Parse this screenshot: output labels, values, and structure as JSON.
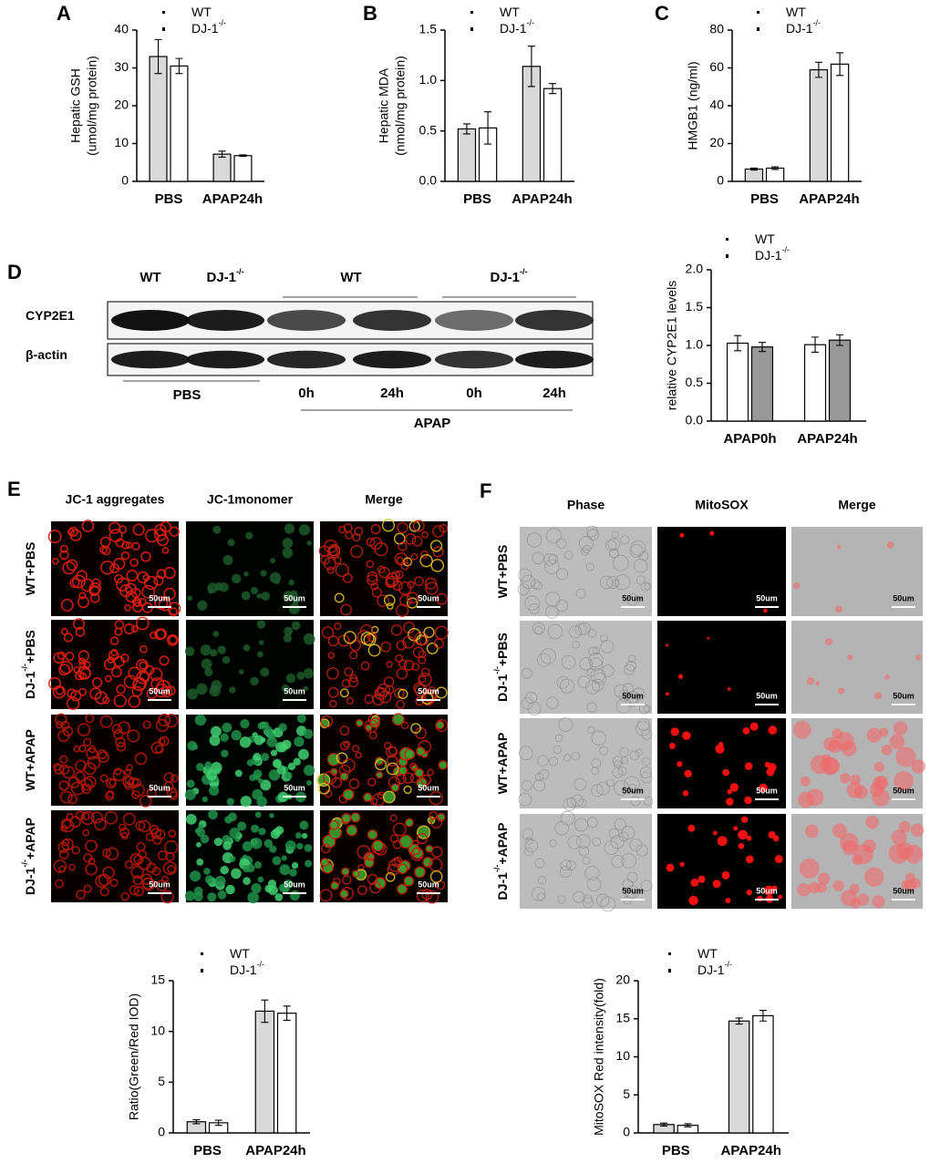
{
  "chart_data": [
    {
      "type": "bar",
      "panel": "A",
      "ylabel": [
        "Hepatic GSH",
        "(umol/mg protein)"
      ],
      "categories": [
        "PBS",
        "APAP24h"
      ],
      "series": [
        {
          "name": "WT",
          "color": "#d9d9d9",
          "values": [
            33,
            7.2
          ],
          "errors": [
            4.5,
            0.8
          ]
        },
        {
          "name": "DJ-1",
          "name_sup": "-/-",
          "color": "#ffffff",
          "values": [
            30.5,
            6.8
          ],
          "errors": [
            2,
            0.2
          ]
        }
      ],
      "ylim": [
        0,
        40
      ],
      "yticks": [
        0,
        10,
        20,
        30,
        40
      ]
    },
    {
      "type": "bar",
      "panel": "B",
      "ylabel": [
        "Hepatic MDA",
        "(nmol/mg protein)"
      ],
      "categories": [
        "PBS",
        "APAP24h"
      ],
      "series": [
        {
          "name": "WT",
          "color": "#d9d9d9",
          "values": [
            0.52,
            1.14
          ],
          "errors": [
            0.05,
            0.2
          ]
        },
        {
          "name": "DJ-1",
          "name_sup": "-/-",
          "color": "#ffffff",
          "values": [
            0.53,
            0.92
          ],
          "errors": [
            0.16,
            0.05
          ]
        }
      ],
      "ylim": [
        0,
        1.5
      ],
      "yticks": [
        {
          "value": 0,
          "label": "0.0"
        },
        0.5,
        {
          "value": 1,
          "label": "1.0"
        },
        1.5
      ]
    },
    {
      "type": "bar",
      "panel": "C",
      "ylabel": [
        "HMGB1 (ng/ml)"
      ],
      "categories": [
        "PBS",
        "APAP24h"
      ],
      "series": [
        {
          "name": "WT",
          "color": "#d9d9d9",
          "values": [
            6.5,
            59
          ],
          "errors": [
            0.5,
            4
          ]
        },
        {
          "name": "DJ-1",
          "name_sup": "-/-",
          "color": "#ffffff",
          "values": [
            7,
            62
          ],
          "errors": [
            0.7,
            6
          ]
        }
      ],
      "ylim": [
        0,
        80
      ],
      "yticks": [
        0,
        20,
        40,
        60,
        80
      ]
    },
    {
      "type": "bar",
      "ylabel": [
        "relative CYP2E1 levels"
      ],
      "categories": [
        "APAP0h",
        "APAP24h"
      ],
      "series": [
        {
          "name": "WT",
          "color": "#ffffff",
          "values": [
            1.03,
            1.01
          ],
          "errors": [
            0.1,
            0.1
          ]
        },
        {
          "name": "DJ-1",
          "name_sup": "-/-",
          "color": "#999999",
          "values": [
            0.98,
            1.07
          ],
          "errors": [
            0.06,
            0.07
          ]
        }
      ],
      "ylim": [
        0,
        2
      ],
      "yticks": [
        {
          "value": 0,
          "label": "0.0"
        },
        0.5,
        {
          "value": 1,
          "label": "1.0"
        },
        1.5,
        {
          "value": 2,
          "label": "2.0"
        }
      ]
    },
    {
      "type": "bar",
      "ylabel": [
        "Ratio(Green/Red IOD)"
      ],
      "categories": [
        "PBS",
        "APAP24h"
      ],
      "series": [
        {
          "name": "WT",
          "color": "#d9d9d9",
          "values": [
            1.1,
            12
          ],
          "errors": [
            0.2,
            1.1
          ]
        },
        {
          "name": "DJ-1",
          "name_sup": "-/-",
          "color": "#ffffff",
          "values": [
            1.0,
            11.8
          ],
          "errors": [
            0.25,
            0.7
          ]
        }
      ],
      "ylim": [
        0,
        15
      ],
      "yticks": [
        0,
        5,
        10,
        15
      ]
    },
    {
      "type": "bar",
      "ylabel": [
        "MitoSOX Red intensity(fold)"
      ],
      "categories": [
        "PBS",
        "APAP24h"
      ],
      "series": [
        {
          "name": "WT",
          "color": "#d9d9d9",
          "values": [
            1.1,
            14.7
          ],
          "errors": [
            0.2,
            0.4
          ]
        },
        {
          "name": "DJ-1",
          "name_sup": "-/-",
          "color": "#ffffff",
          "values": [
            1.0,
            15.4
          ],
          "errors": [
            0.2,
            0.7
          ]
        }
      ],
      "ylim": [
        0,
        20
      ],
      "yticks": [
        0,
        5,
        10,
        15,
        20
      ]
    }
  ],
  "blot": {
    "panel": "D",
    "top_labels": [
      {
        "text": "WT"
      },
      {
        "text": "DJ-1",
        "sup": "-/-"
      },
      {
        "text": "WT"
      },
      {
        "text": "DJ-1",
        "sup": "-/-"
      }
    ],
    "rows": [
      "CYP2E1",
      "β-actin"
    ],
    "group_label": "PBS",
    "time_labels": [
      "0h",
      "24h",
      "0h",
      "24h"
    ],
    "treatment": "APAP"
  },
  "jc1": {
    "panel": "E",
    "columns": [
      "JC-1 aggregates",
      "JC-1monomer",
      "Merge"
    ],
    "rows": [
      {
        "text": "WT+PBS"
      },
      {
        "text": "DJ-1",
        "sup": "-/-",
        "rest": "+PBS"
      },
      {
        "text": "WT+APAP"
      },
      {
        "text": "DJ-1",
        "sup": "-/-",
        "rest": "+APAP"
      }
    ],
    "scale_label": "50um"
  },
  "mitosox": {
    "panel": "F",
    "columns": [
      "Phase",
      "MitoSOX",
      "Merge"
    ],
    "rows": [
      {
        "text": "WT+PBS"
      },
      {
        "text": "DJ-1",
        "sup": "-/-",
        "rest": "+PBS"
      },
      {
        "text": "WT+APAP"
      },
      {
        "text": "DJ-1",
        "sup": "-/-",
        "rest": "+APAP"
      }
    ],
    "scale_label": "50um"
  }
}
